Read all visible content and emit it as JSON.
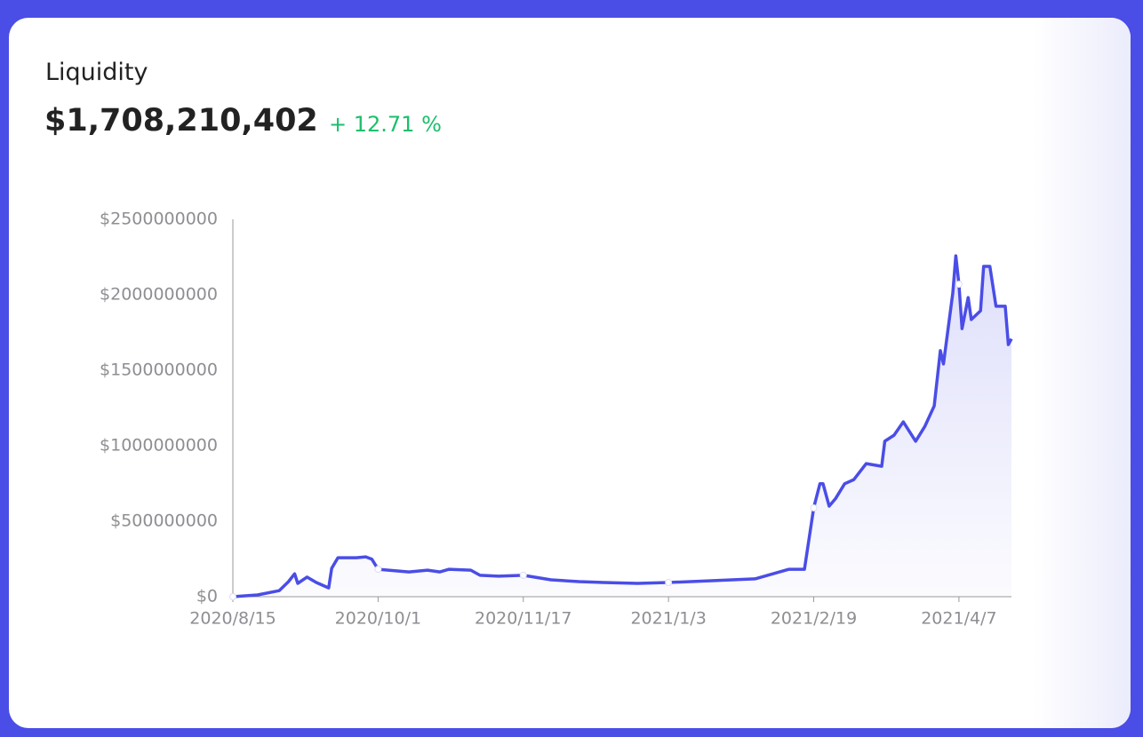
{
  "header": {
    "title": "Liquidity",
    "amount": "$1,708,210,402",
    "change": "+ 12.71 %"
  },
  "chart_data": {
    "type": "area",
    "color": "#4a4de6",
    "x": [
      "2020/8/15",
      "2020/8/23",
      "2020/8/30",
      "2020/9/2",
      "2020/9/4",
      "2020/9/5",
      "2020/9/8",
      "2020/9/11",
      "2020/9/15",
      "2020/9/16",
      "2020/9/18",
      "2020/9/24",
      "2020/9/27",
      "2020/9/29",
      "2020/10/1",
      "2020/10/11",
      "2020/10/17",
      "2020/10/21",
      "2020/10/24",
      "2020/10/31",
      "2020/11/3",
      "2020/11/9",
      "2020/11/17",
      "2020/11/26",
      "2020/12/5",
      "2020/12/13",
      "2020/12/24",
      "2021/1/3",
      "2021/1/17",
      "2021/1/31",
      "2021/2/11",
      "2021/2/16",
      "2021/2/19",
      "2021/2/21",
      "2021/2/22",
      "2021/2/24",
      "2021/2/26",
      "2021/3/1",
      "2021/3/4",
      "2021/3/8",
      "2021/3/13",
      "2021/3/14",
      "2021/3/17",
      "2021/3/20",
      "2021/3/24",
      "2021/3/27",
      "2021/3/30",
      "2021/4/1",
      "2021/4/2",
      "2021/4/5",
      "2021/4/6",
      "2021/4/7",
      "2021/4/8",
      "2021/4/10",
      "2021/4/11",
      "2021/4/14",
      "2021/4/15",
      "2021/4/17",
      "2021/4/19",
      "2021/4/22",
      "2021/4/23",
      "2021/4/24"
    ],
    "values": [
      0,
      12000000,
      40000000,
      100000000,
      152000000,
      88000000,
      130000000,
      94000000,
      58000000,
      188000000,
      258000000,
      258000000,
      264000000,
      248000000,
      182000000,
      164000000,
      176000000,
      164000000,
      182000000,
      176000000,
      142000000,
      136000000,
      142000000,
      112000000,
      100000000,
      94000000,
      88000000,
      94000000,
      106000000,
      118000000,
      182000000,
      182000000,
      588000000,
      748000000,
      748000000,
      600000000,
      648000000,
      748000000,
      776000000,
      882000000,
      864000000,
      1030000000,
      1070000000,
      1158000000,
      1030000000,
      1130000000,
      1264000000,
      1630000000,
      1542000000,
      2012000000,
      2258000000,
      2070000000,
      1776000000,
      1982000000,
      1836000000,
      1894000000,
      2188000000,
      2188000000,
      1924000000,
      1924000000,
      1670000000,
      1708000000
    ],
    "xlim": [
      "2020/8/15",
      "2021/4/24"
    ],
    "xticks": [
      "2020/8/15",
      "2020/10/1",
      "2020/11/17",
      "2021/1/3",
      "2021/2/19",
      "2021/4/7"
    ],
    "ylim": [
      0,
      2500000000
    ],
    "yticks": [
      {
        "value": 0,
        "label": "$0"
      },
      {
        "value": 500000000,
        "label": "$500000000"
      },
      {
        "value": 1000000000,
        "label": "$1000000000"
      },
      {
        "value": 1500000000,
        "label": "$1500000000"
      },
      {
        "value": 2000000000,
        "label": "$2000000000"
      },
      {
        "value": 2500000000,
        "label": "$2500000000"
      }
    ]
  }
}
